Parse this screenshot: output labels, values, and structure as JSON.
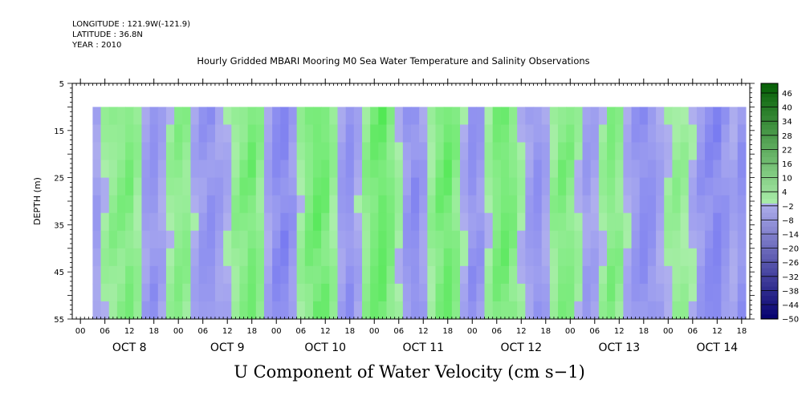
{
  "header": {
    "longitude": "LONGITUDE : 121.9W(-121.9)",
    "latitude": "LATITUDE : 36.8N",
    "year": "YEAR : 2010"
  },
  "chart_data": {
    "type": "heatmap",
    "title": "Hourly Gridded MBARI Mooring M0 Sea Water Temperature and Salinity Observations",
    "xlabel": "U Component of Water Velocity (cm s−1)",
    "ylabel": "DEPTH (m)",
    "ylim": [
      5,
      55
    ],
    "y_inverted": true,
    "y_ticks": [
      5,
      15,
      25,
      35,
      45,
      55
    ],
    "x_hour_ticks": [
      "00",
      "06",
      "12",
      "18",
      "00",
      "06",
      "12",
      "18",
      "00",
      "06",
      "12",
      "18",
      "00",
      "06",
      "12",
      "18",
      "00",
      "06",
      "12",
      "18",
      "00",
      "06",
      "12",
      "18",
      "00",
      "06",
      "12",
      "18"
    ],
    "x_days": [
      "OCT  8",
      "OCT  9",
      "OCT 10",
      "OCT 11",
      "OCT 12",
      "OCT 13",
      "OCT 14"
    ],
    "x_range_hours": [
      -2,
      164
    ],
    "data_range": {
      "x_hours": [
        3,
        163
      ],
      "depth": [
        10,
        55
      ]
    },
    "colorbar": {
      "levels": [
        "46",
        "40",
        "34",
        "28",
        "22",
        "16",
        "10",
        "4",
        "−2",
        "−8",
        "−14",
        "−20",
        "−26",
        "−32",
        "−38",
        "−44",
        "−50"
      ],
      "min": -50,
      "max": 52
    },
    "column_values": [
      -5,
      2,
      6,
      8,
      10,
      4,
      -6,
      -9,
      -4,
      3,
      7,
      6,
      -3,
      -8,
      -10,
      -6,
      -2,
      5,
      9,
      12,
      6,
      -4,
      -12,
      -14,
      -8,
      3,
      10,
      14,
      12,
      4,
      -6,
      -10,
      -3,
      6,
      12,
      15,
      10,
      2,
      -8,
      -12,
      -6,
      4,
      11,
      14,
      8,
      -2,
      -10,
      -8,
      2,
      10,
      13,
      9,
      1,
      -6,
      -10,
      -4,
      5,
      10,
      8,
      2,
      -6,
      -4,
      3,
      9,
      6,
      -2,
      -8,
      -12,
      -10,
      -4,
      2,
      5,
      3,
      -2,
      -8,
      -12,
      -14,
      -9,
      -4,
      -10
    ]
  }
}
